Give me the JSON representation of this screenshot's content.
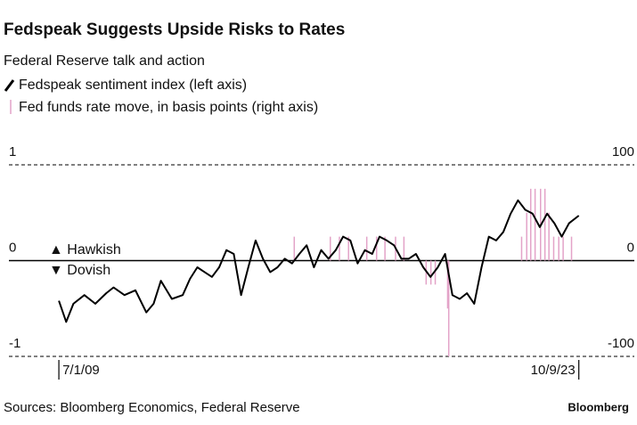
{
  "chart_data": {
    "type": "line",
    "title": "Fedspeak Suggests Upside Risks to Rates",
    "subtitle": "Federal Reserve talk and action",
    "source": "Sources: Bloomberg Economics, Federal Reserve",
    "brand": "Bloomberg",
    "annotations": [
      "▲ Hawkish",
      "▼ Dovish"
    ],
    "xlim": [
      2008.3,
      2025.0
    ],
    "xticks": [
      {
        "value": 2009.5,
        "label": "7/1/09"
      },
      {
        "value": 2023.77,
        "label": "10/9/23"
      }
    ],
    "ylim": [
      -1,
      1
    ],
    "yticks": [
      -1,
      0,
      1
    ],
    "y2lim": [
      -100,
      100
    ],
    "y2ticks": [
      -100,
      0,
      100
    ],
    "series": [
      {
        "name": "Fedspeak sentiment index (left axis)",
        "type": "line",
        "color": "#000000",
        "x": [
          2009.5,
          2009.7,
          2009.9,
          2010.2,
          2010.5,
          2010.8,
          2011.0,
          2011.3,
          2011.6,
          2011.9,
          2012.1,
          2012.3,
          2012.6,
          2012.9,
          2013.1,
          2013.3,
          2013.5,
          2013.7,
          2013.9,
          2014.1,
          2014.3,
          2014.5,
          2014.7,
          2014.9,
          2015.1,
          2015.3,
          2015.5,
          2015.7,
          2015.9,
          2016.1,
          2016.3,
          2016.5,
          2016.7,
          2016.9,
          2017.1,
          2017.3,
          2017.5,
          2017.7,
          2017.9,
          2018.1,
          2018.3,
          2018.5,
          2018.7,
          2018.9,
          2019.1,
          2019.3,
          2019.5,
          2019.7,
          2019.9,
          2020.1,
          2020.3,
          2020.5,
          2020.7,
          2020.9,
          2021.1,
          2021.3,
          2021.5,
          2021.7,
          2021.9,
          2022.1,
          2022.3,
          2022.5,
          2022.7,
          2022.9,
          2023.1,
          2023.3,
          2023.5,
          2023.77
        ],
        "values": [
          -0.42,
          -0.64,
          -0.45,
          -0.36,
          -0.45,
          -0.34,
          -0.28,
          -0.36,
          -0.31,
          -0.54,
          -0.45,
          -0.21,
          -0.4,
          -0.36,
          -0.19,
          -0.07,
          -0.12,
          -0.17,
          -0.07,
          0.11,
          0.07,
          -0.36,
          -0.07,
          0.21,
          0.02,
          -0.12,
          -0.07,
          0.02,
          -0.03,
          0.07,
          0.16,
          -0.07,
          0.11,
          0.02,
          0.11,
          0.25,
          0.21,
          -0.03,
          0.11,
          0.07,
          0.25,
          0.21,
          0.16,
          0.02,
          0.02,
          0.07,
          -0.07,
          -0.17,
          -0.07,
          0.07,
          -0.36,
          -0.4,
          -0.34,
          -0.45,
          -0.07,
          0.25,
          0.21,
          0.3,
          0.49,
          0.63,
          0.53,
          0.49,
          0.35,
          0.49,
          0.39,
          0.25,
          0.39,
          0.47
        ]
      },
      {
        "name": "Fed funds rate move, in basis points (right axis)",
        "type": "bar",
        "color": "#e3a3c8",
        "axis": "y2",
        "x": [
          2015.96,
          2016.95,
          2017.2,
          2017.45,
          2017.95,
          2018.22,
          2018.45,
          2018.74,
          2018.97,
          2019.58,
          2019.71,
          2019.83,
          2020.17,
          2020.2,
          2022.2,
          2022.34,
          2022.45,
          2022.57,
          2022.72,
          2022.84,
          2022.95,
          2023.08,
          2023.22,
          2023.34,
          2023.57
        ],
        "values": [
          25,
          25,
          25,
          25,
          25,
          25,
          25,
          25,
          25,
          -25,
          -25,
          -25,
          -50,
          -100,
          25,
          50,
          75,
          75,
          75,
          75,
          50,
          25,
          25,
          25,
          25
        ]
      }
    ]
  }
}
